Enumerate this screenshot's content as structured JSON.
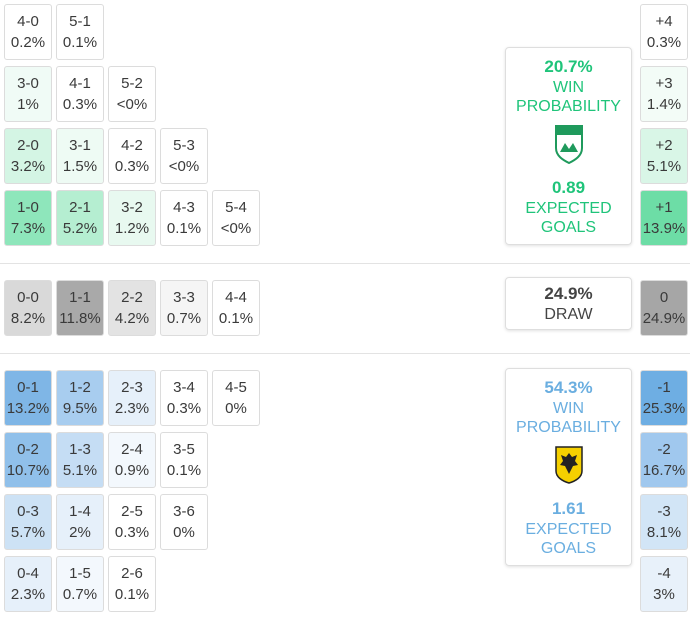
{
  "home": {
    "rows": [
      [
        {
          "score": "4-0",
          "prob": "0.2%",
          "color": "#ffffff"
        },
        {
          "score": "5-1",
          "prob": "0.1%",
          "color": "#ffffff"
        }
      ],
      [
        {
          "score": "3-0",
          "prob": "1%",
          "color": "#f0fbf6"
        },
        {
          "score": "4-1",
          "prob": "0.3%",
          "color": "#ffffff"
        },
        {
          "score": "5-2",
          "prob": "<0%",
          "color": "#ffffff"
        }
      ],
      [
        {
          "score": "2-0",
          "prob": "3.2%",
          "color": "#d4f5e4"
        },
        {
          "score": "3-1",
          "prob": "1.5%",
          "color": "#eefbf4"
        },
        {
          "score": "4-2",
          "prob": "0.3%",
          "color": "#ffffff"
        },
        {
          "score": "5-3",
          "prob": "<0%",
          "color": "#ffffff"
        }
      ],
      [
        {
          "score": "1-0",
          "prob": "7.3%",
          "color": "#8ee6bb"
        },
        {
          "score": "2-1",
          "prob": "5.2%",
          "color": "#b5eed1"
        },
        {
          "score": "3-2",
          "prob": "1.2%",
          "color": "#e8f9f0"
        },
        {
          "score": "4-3",
          "prob": "0.1%",
          "color": "#ffffff"
        },
        {
          "score": "5-4",
          "prob": "<0%",
          "color": "#ffffff"
        }
      ]
    ],
    "margins": [
      {
        "score": "+4",
        "prob": "0.3%",
        "color": "#ffffff"
      },
      {
        "score": "+3",
        "prob": "1.4%",
        "color": "#f3fcf7"
      },
      {
        "score": "+2",
        "prob": "5.1%",
        "color": "#d9f6e7"
      },
      {
        "score": "+1",
        "prob": "13.9%",
        "color": "#6ddda6"
      }
    ],
    "summary": {
      "probability": "20.7%",
      "label": "WIN PROBABILITY",
      "xg": "0.89",
      "xg_label": "EXPECTED GOALS",
      "color": "#1fc47a",
      "logo": "RAAL"
    }
  },
  "draw": {
    "rows": [
      [
        {
          "score": "0-0",
          "prob": "8.2%",
          "color": "#d9d9d9"
        },
        {
          "score": "1-1",
          "prob": "11.8%",
          "color": "#a9a9a9"
        },
        {
          "score": "2-2",
          "prob": "4.2%",
          "color": "#e3e3e3"
        },
        {
          "score": "3-3",
          "prob": "0.7%",
          "color": "#f5f5f5"
        },
        {
          "score": "4-4",
          "prob": "0.1%",
          "color": "#ffffff"
        }
      ]
    ],
    "margins": [
      {
        "score": "0",
        "prob": "24.9%",
        "color": "#a6a6a6"
      }
    ],
    "summary": {
      "probability": "24.9%",
      "label": "DRAW",
      "color": "#444444"
    }
  },
  "away": {
    "rows": [
      [
        {
          "score": "0-1",
          "prob": "13.2%",
          "color": "#7fb6e6"
        },
        {
          "score": "1-2",
          "prob": "9.5%",
          "color": "#a8cdef"
        },
        {
          "score": "2-3",
          "prob": "2.3%",
          "color": "#e6f0fa"
        },
        {
          "score": "3-4",
          "prob": "0.3%",
          "color": "#ffffff"
        },
        {
          "score": "4-5",
          "prob": "0%",
          "color": "#ffffff"
        }
      ],
      [
        {
          "score": "0-2",
          "prob": "10.7%",
          "color": "#90c0ea"
        },
        {
          "score": "1-3",
          "prob": "5.1%",
          "color": "#c5ddf4"
        },
        {
          "score": "2-4",
          "prob": "0.9%",
          "color": "#f3f8fd"
        },
        {
          "score": "3-5",
          "prob": "0.1%",
          "color": "#ffffff"
        }
      ],
      [
        {
          "score": "0-3",
          "prob": "5.7%",
          "color": "#cde2f5"
        },
        {
          "score": "1-4",
          "prob": "2%",
          "color": "#e6f0fa"
        },
        {
          "score": "2-5",
          "prob": "0.3%",
          "color": "#ffffff"
        },
        {
          "score": "3-6",
          "prob": "0%",
          "color": "#ffffff"
        }
      ],
      [
        {
          "score": "0-4",
          "prob": "2.3%",
          "color": "#e6f0fa"
        },
        {
          "score": "1-5",
          "prob": "0.7%",
          "color": "#f3f8fd"
        },
        {
          "score": "2-6",
          "prob": "0.1%",
          "color": "#ffffff"
        }
      ]
    ],
    "margins": [
      {
        "score": "-1",
        "prob": "25.3%",
        "color": "#6eaee3"
      },
      {
        "score": "-2",
        "prob": "16.7%",
        "color": "#a0c8ee"
      },
      {
        "score": "-3",
        "prob": "8.1%",
        "color": "#d2e5f6"
      },
      {
        "score": "-4",
        "prob": "3%",
        "color": "#e8f1fa"
      }
    ],
    "summary": {
      "probability": "54.3%",
      "label": "WIN PROBABILITY",
      "xg": "1.61",
      "xg_label": "EXPECTED GOALS",
      "color": "#6aaee0",
      "logo": "STVV"
    }
  }
}
